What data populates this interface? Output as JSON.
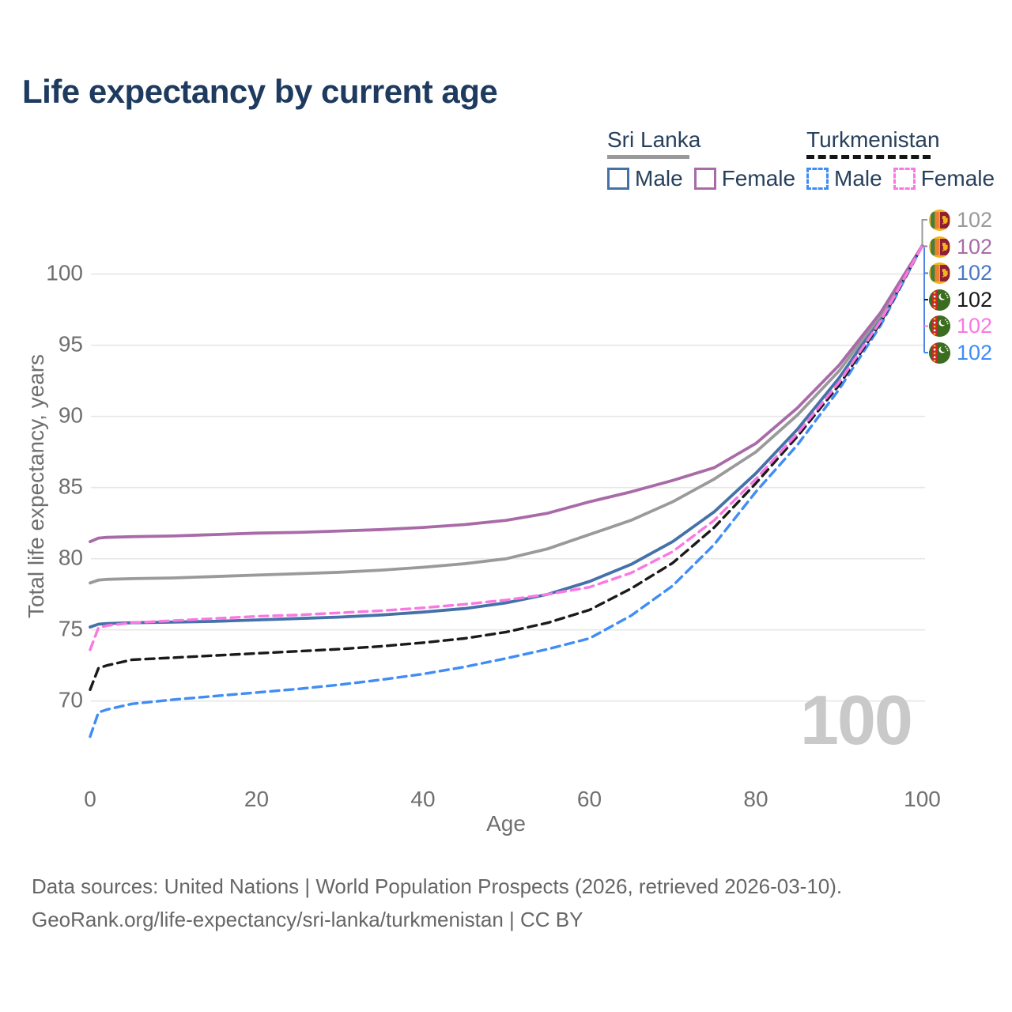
{
  "title": "Life expectancy by current age",
  "legend": {
    "groups": [
      {
        "label": "Sri Lanka",
        "line_style": "solid",
        "underline_color": "#9a9a9a",
        "items": [
          {
            "label": "Male",
            "color": "#4472a8",
            "dashed": false
          },
          {
            "label": "Female",
            "color": "#a86ba8",
            "dashed": false
          }
        ]
      },
      {
        "label": "Turkmenistan",
        "line_style": "dashed",
        "underline_color": "#151515",
        "items": [
          {
            "label": "Male",
            "color": "#3f8df5",
            "dashed": true
          },
          {
            "label": "Female",
            "color": "#fa78e2",
            "dashed": true
          }
        ]
      }
    ]
  },
  "chart_data": {
    "type": "line",
    "title": "Life expectancy by current age",
    "xlabel": "Age",
    "ylabel": "Total life expectancy, years",
    "xticks": [
      0,
      20,
      40,
      60,
      80,
      100
    ],
    "yticks": [
      70,
      75,
      80,
      85,
      90,
      95,
      100
    ],
    "xlim": [
      0,
      100
    ],
    "ylim": [
      66,
      104
    ],
    "grid": "horizontal",
    "legend_position": "top-right",
    "age_counter": "100",
    "x": [
      0,
      1,
      2,
      5,
      10,
      15,
      20,
      25,
      30,
      35,
      40,
      45,
      50,
      55,
      60,
      65,
      70,
      75,
      80,
      85,
      90,
      95,
      100
    ],
    "series": [
      {
        "name": "Sri Lanka Male",
        "color": "#4472a8",
        "dashed": false,
        "end_value": 102,
        "values": [
          75.2,
          75.4,
          75.45,
          75.5,
          75.55,
          75.6,
          75.7,
          75.8,
          75.9,
          76.05,
          76.25,
          76.5,
          76.9,
          77.5,
          78.4,
          79.6,
          81.2,
          83.3,
          86.0,
          89.1,
          92.7,
          96.9,
          102
        ]
      },
      {
        "name": "Sri Lanka",
        "color": "#9a9a9a",
        "dashed": false,
        "end_value": 102,
        "values": [
          78.3,
          78.5,
          78.55,
          78.6,
          78.65,
          78.75,
          78.85,
          78.95,
          79.05,
          79.2,
          79.4,
          79.65,
          80.0,
          80.7,
          81.7,
          82.7,
          84.0,
          85.6,
          87.5,
          90.1,
          93.2,
          97.1,
          102
        ]
      },
      {
        "name": "Sri Lanka Female",
        "color": "#a86ba8",
        "dashed": false,
        "end_value": 102,
        "values": [
          81.2,
          81.45,
          81.5,
          81.55,
          81.6,
          81.7,
          81.8,
          81.85,
          81.95,
          82.05,
          82.2,
          82.4,
          82.7,
          83.2,
          84.0,
          84.7,
          85.5,
          86.4,
          88.1,
          90.6,
          93.6,
          97.3,
          102
        ]
      },
      {
        "name": "Turkmenistan Male",
        "color": "#3f8df5",
        "dashed": true,
        "end_value": 102,
        "values": [
          67.5,
          69.2,
          69.4,
          69.8,
          70.1,
          70.35,
          70.6,
          70.85,
          71.15,
          71.5,
          71.9,
          72.4,
          73.0,
          73.65,
          74.4,
          76.0,
          78.1,
          81.0,
          84.7,
          88.0,
          91.9,
          96.4,
          102
        ]
      },
      {
        "name": "Turkmenistan",
        "color": "#1a1a1a",
        "dashed": true,
        "end_value": 102,
        "values": [
          70.8,
          72.3,
          72.5,
          72.9,
          73.05,
          73.2,
          73.35,
          73.5,
          73.65,
          73.85,
          74.1,
          74.4,
          74.85,
          75.5,
          76.4,
          77.9,
          79.7,
          82.2,
          85.3,
          88.6,
          92.2,
          96.6,
          102
        ]
      },
      {
        "name": "Turkmenistan Female",
        "color": "#fa78e2",
        "dashed": true,
        "end_value": 102,
        "values": [
          73.6,
          75.15,
          75.3,
          75.5,
          75.65,
          75.8,
          75.95,
          76.05,
          76.2,
          76.35,
          76.55,
          76.8,
          77.1,
          77.5,
          78.0,
          79.0,
          80.5,
          82.7,
          85.6,
          88.8,
          92.4,
          96.7,
          102
        ]
      }
    ]
  },
  "right_labels": [
    {
      "value": "102",
      "flag": "sri-lanka",
      "color": "#9a9a9a",
      "series": "Sri Lanka"
    },
    {
      "value": "102",
      "flag": "sri-lanka",
      "color": "#a86ba8",
      "series": "Sri Lanka Female"
    },
    {
      "value": "102",
      "flag": "sri-lanka",
      "color": "#4b79c4",
      "series": "Sri Lanka Male"
    },
    {
      "value": "102",
      "flag": "turkmenistan",
      "color": "#1a1a1a",
      "series": "Turkmenistan"
    },
    {
      "value": "102",
      "flag": "turkmenistan",
      "color": "#fa78e2",
      "series": "Turkmenistan Female"
    },
    {
      "value": "102",
      "flag": "turkmenistan",
      "color": "#3f8df5",
      "series": "Turkmenistan Male"
    }
  ],
  "footer": {
    "line1": "Data sources: United Nations | World Population Prospects (2026, retrieved 2026-03-10).",
    "line2": "GeoRank.org/life-expectancy/sri-lanka/turkmenistan | CC BY"
  }
}
